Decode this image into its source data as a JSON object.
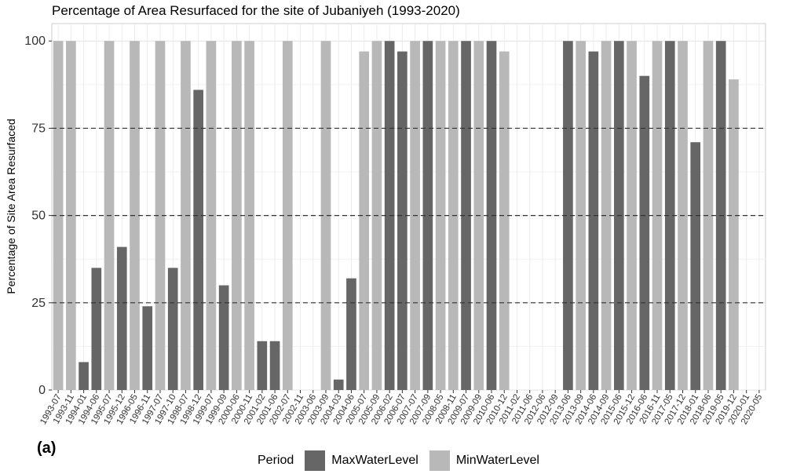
{
  "panel_label": "(a)",
  "chart_data": {
    "type": "bar",
    "title": "Percentage of Area Resurfaced for the site of Jubaniyeh (1993-2020)",
    "xlabel": "",
    "ylabel": "Percentage of Site Area Resurfaced",
    "ylim": [
      0,
      105
    ],
    "yticks": [
      0,
      25,
      50,
      75,
      100
    ],
    "reference_lines": [
      25,
      50,
      75
    ],
    "grid": true,
    "legend": {
      "title": "Period",
      "placement": "bottom",
      "entries": [
        {
          "name": "MaxWaterLevel",
          "color": "#666666"
        },
        {
          "name": "MinWaterLevel",
          "color": "#b8b8b8"
        }
      ]
    },
    "categories": [
      "1993-07",
      "1993-11",
      "1994-01",
      "1994-06",
      "1995-07",
      "1995-12",
      "1996-05",
      "1996-11",
      "1997-07",
      "1997-10",
      "1998-07",
      "1998-12",
      "1999-07",
      "1999-09",
      "2000-06",
      "2000-11",
      "2001-02",
      "2001-06",
      "2002-07",
      "2002-11",
      "2003-06",
      "2003-09",
      "2004-03",
      "2004-06",
      "2005-07",
      "2005-09",
      "2006-02",
      "2006-07",
      "2007-07",
      "2007-09",
      "2008-05",
      "2008-11",
      "2009-07",
      "2009-09",
      "2010-06",
      "2010-12",
      "2011-02",
      "2011-06",
      "2012-06",
      "2012-09",
      "2013-06",
      "2013-09",
      "2014-06",
      "2014-09",
      "2015-06",
      "2015-12",
      "2016-06",
      "2016-11",
      "2017-05",
      "2017-12",
      "2018-01",
      "2018-06",
      "2019-05",
      "2019-12",
      "2020-01",
      "2020-05"
    ],
    "values": [
      100,
      100,
      8,
      35,
      100,
      41,
      100,
      24,
      100,
      35,
      100,
      86,
      100,
      30,
      100,
      100,
      14,
      14,
      100,
      0,
      0,
      100,
      3,
      32,
      97,
      100,
      100,
      97,
      100,
      100,
      100,
      100,
      100,
      100,
      100,
      97,
      0,
      0,
      0,
      0,
      100,
      100,
      97,
      100,
      100,
      100,
      90,
      100,
      100,
      100,
      71,
      100,
      100,
      89,
      null,
      null
    ],
    "periods": [
      "Min",
      "Min",
      "Max",
      "Max",
      "Min",
      "Max",
      "Min",
      "Max",
      "Min",
      "Max",
      "Min",
      "Max",
      "Min",
      "Max",
      "Min",
      "Min",
      "Max",
      "Max",
      "Min",
      "Max",
      "Min",
      "Min",
      "Max",
      "Max",
      "Min",
      "Min",
      "Max",
      "Max",
      "Min",
      "Max",
      "Min",
      "Min",
      "Max",
      "Min",
      "Max",
      "Min",
      "Max",
      "Min",
      "Max",
      "Min",
      "Max",
      "Min",
      "Max",
      "Min",
      "Max",
      "Min",
      "Max",
      "Min",
      "Max",
      "Min",
      "Max",
      "Min",
      "Max",
      "Min",
      "Min",
      "Max"
    ]
  }
}
